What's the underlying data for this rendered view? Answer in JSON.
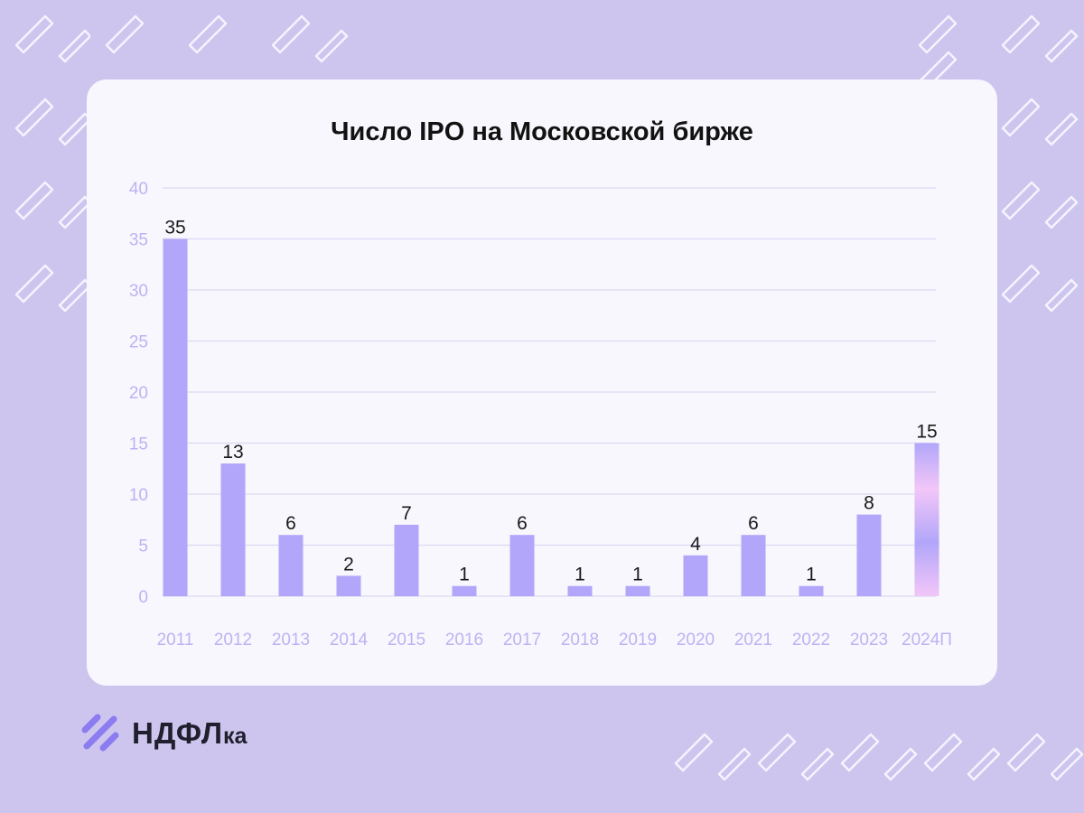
{
  "brand": {
    "name_main": "НДФЛ",
    "name_suffix": "ка",
    "accent_color": "#8b7cf0"
  },
  "chart_data": {
    "type": "bar",
    "title": "Число IPO на Московской бирже",
    "categories": [
      "2011",
      "2012",
      "2013",
      "2014",
      "2015",
      "2016",
      "2017",
      "2018",
      "2019",
      "2020",
      "2021",
      "2022",
      "2023",
      "2024П"
    ],
    "values": [
      35,
      13,
      6,
      2,
      7,
      1,
      6,
      1,
      1,
      4,
      6,
      1,
      8,
      15
    ],
    "data_labels": [
      "35",
      "13",
      "6",
      "2",
      "7",
      "1",
      "6",
      "1",
      "1",
      "4",
      "6",
      "1",
      "8",
      "15"
    ],
    "xlabel": "",
    "ylabel": "",
    "ylim": [
      0,
      40
    ],
    "yticks": [
      "0",
      "5",
      "10",
      "15",
      "20",
      "25",
      "30",
      "35",
      "40"
    ],
    "grid": true,
    "legend": "none",
    "bar_color": "#b2a6fa",
    "forecast_bar_gradient": [
      "#b2a6fa",
      "#f2c6f7"
    ],
    "gridline_color": "#dcd8f3",
    "tick_label_color": "#bdb3f3",
    "data_label_color": "#1a1a1a"
  }
}
